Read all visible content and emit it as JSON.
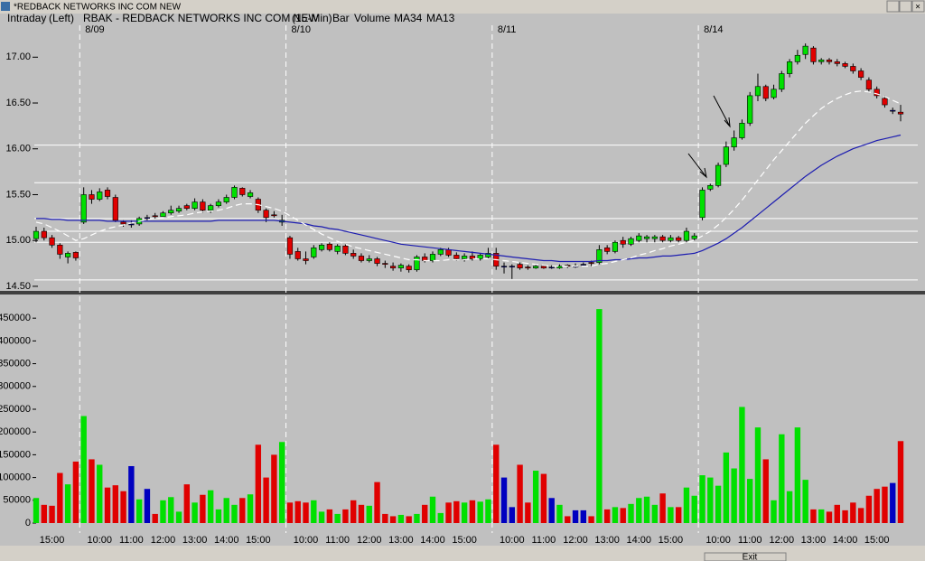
{
  "window_title": "*REDBACK NETWORKS INC COM NEW",
  "button": "Exit",
  "header": {
    "view": "Intraday",
    "side": "(Left)",
    "symbol": "RBAK - REDBACK NETWORKS INC COM NEW",
    "interval": "(15-Min)",
    "style": "Bar"
  },
  "chart_data": [
    {
      "type": "candlestick",
      "categories": [
        null,
        null,
        null,
        null,
        null,
        null,
        "8/09",
        null,
        null,
        null,
        null,
        null,
        null,
        null,
        null,
        null,
        null,
        null,
        null,
        null,
        null,
        null,
        null,
        null,
        null,
        null,
        null,
        null,
        null,
        null,
        null,
        null,
        "8/10",
        null,
        null,
        null,
        null,
        null,
        null,
        null,
        null,
        null,
        null,
        null,
        null,
        null,
        null,
        null,
        null,
        null,
        null,
        null,
        null,
        null,
        null,
        null,
        null,
        null,
        "8/11",
        null,
        null,
        null,
        null,
        null,
        null,
        null,
        null,
        null,
        null,
        null,
        null,
        null,
        null,
        null,
        null,
        null,
        null,
        null,
        null,
        null,
        null,
        null,
        null,
        null,
        "8/14",
        null,
        null,
        null,
        null,
        null,
        null,
        null,
        null,
        null,
        null,
        null,
        null,
        null,
        null,
        null,
        null,
        null,
        null,
        null,
        null,
        null,
        null,
        null,
        null,
        null
      ],
      "open": [
        15.02,
        15.1,
        15.03,
        14.95,
        14.82,
        14.87,
        15.2,
        15.5,
        15.45,
        15.55,
        15.47,
        15.2,
        15.18,
        15.18,
        15.25,
        15.27,
        15.26,
        15.3,
        15.32,
        15.38,
        15.35,
        15.42,
        15.33,
        15.38,
        15.42,
        15.47,
        15.57,
        15.48,
        15.45,
        15.33,
        15.28,
        15.2,
        15.03,
        14.88,
        14.8,
        14.82,
        14.9,
        14.96,
        14.88,
        14.94,
        14.86,
        14.83,
        14.78,
        14.8,
        14.75,
        14.72,
        14.7,
        14.72,
        14.68,
        14.82,
        14.78,
        14.85,
        14.9,
        14.84,
        14.8,
        14.83,
        14.8,
        14.82,
        14.86,
        14.72,
        14.72,
        14.74,
        14.71,
        14.7,
        14.72,
        14.71,
        14.7,
        14.73,
        14.72,
        14.74,
        14.76,
        14.76,
        14.92,
        14.88,
        15.0,
        14.96,
        15.0,
        15.02,
        15.02,
        15.04,
        15.0,
        15.03,
        15.0,
        15.02,
        15.25,
        15.56,
        15.6,
        15.83,
        16.02,
        16.12,
        16.28,
        16.58,
        16.68,
        16.56,
        16.65,
        16.82,
        16.95,
        17.03,
        17.1,
        16.95,
        16.97,
        16.95,
        16.93,
        16.9,
        16.85,
        16.75,
        16.65,
        16.55,
        16.42,
        16.4
      ],
      "high": [
        15.15,
        15.14,
        15.06,
        14.97,
        14.88,
        14.88,
        15.58,
        15.55,
        15.57,
        15.58,
        15.5,
        15.22,
        15.22,
        15.26,
        15.28,
        15.3,
        15.32,
        15.38,
        15.38,
        15.4,
        15.46,
        15.45,
        15.4,
        15.45,
        15.5,
        15.6,
        15.58,
        15.55,
        15.47,
        15.35,
        15.32,
        15.28,
        15.05,
        14.92,
        14.88,
        14.95,
        14.97,
        14.98,
        14.96,
        14.96,
        14.9,
        14.86,
        14.84,
        14.82,
        14.78,
        14.76,
        14.75,
        14.74,
        14.84,
        14.86,
        14.88,
        14.92,
        14.92,
        14.87,
        14.86,
        14.88,
        14.86,
        14.92,
        14.92,
        14.76,
        14.74,
        14.76,
        14.73,
        14.74,
        14.73,
        14.73,
        14.74,
        14.74,
        14.75,
        14.76,
        14.78,
        14.95,
        14.95,
        15.0,
        15.04,
        15.04,
        15.08,
        15.06,
        15.06,
        15.06,
        15.06,
        15.05,
        15.14,
        15.08,
        15.58,
        15.62,
        15.85,
        16.08,
        16.2,
        16.32,
        16.62,
        16.82,
        16.7,
        16.7,
        16.85,
        16.98,
        17.08,
        17.15,
        17.12,
        16.99,
        16.99,
        16.98,
        16.95,
        16.93,
        16.88,
        16.78,
        16.68,
        16.58,
        16.45,
        16.48
      ],
      "low": [
        14.98,
        15.0,
        14.92,
        14.8,
        14.75,
        14.78,
        15.18,
        15.4,
        15.43,
        15.45,
        15.2,
        15.15,
        15.14,
        15.16,
        15.22,
        15.24,
        15.25,
        15.28,
        15.3,
        15.33,
        15.33,
        15.3,
        15.3,
        15.36,
        15.4,
        15.45,
        15.48,
        15.46,
        15.3,
        15.2,
        15.25,
        15.16,
        14.8,
        14.78,
        14.74,
        14.8,
        14.88,
        14.88,
        14.85,
        14.84,
        14.8,
        14.76,
        14.76,
        14.72,
        14.7,
        14.67,
        14.66,
        14.65,
        14.66,
        14.76,
        14.76,
        14.83,
        14.82,
        14.78,
        14.77,
        14.78,
        14.78,
        14.8,
        14.68,
        14.64,
        14.58,
        14.68,
        14.68,
        14.69,
        14.69,
        14.69,
        14.69,
        14.7,
        14.7,
        14.72,
        14.72,
        14.74,
        14.85,
        14.86,
        14.92,
        14.94,
        14.98,
        14.98,
        14.98,
        14.98,
        14.98,
        14.98,
        14.98,
        15.0,
        15.22,
        15.54,
        15.58,
        15.8,
        15.98,
        16.1,
        16.25,
        16.52,
        16.52,
        16.54,
        16.62,
        16.78,
        16.92,
        16.98,
        16.92,
        16.92,
        16.92,
        16.9,
        16.88,
        16.82,
        16.75,
        16.62,
        16.55,
        16.45,
        16.38,
        16.3
      ],
      "close": [
        15.1,
        15.03,
        14.95,
        14.85,
        14.86,
        14.81,
        15.5,
        15.45,
        15.53,
        15.48,
        15.22,
        15.18,
        15.18,
        15.24,
        15.25,
        15.26,
        15.3,
        15.33,
        15.35,
        15.35,
        15.42,
        15.33,
        15.38,
        15.42,
        15.47,
        15.58,
        15.5,
        15.52,
        15.33,
        15.25,
        15.27,
        15.22,
        14.85,
        14.8,
        14.78,
        14.92,
        14.95,
        14.9,
        14.94,
        14.86,
        14.83,
        14.78,
        14.8,
        14.75,
        14.74,
        14.7,
        14.73,
        14.68,
        14.82,
        14.78,
        14.85,
        14.9,
        14.84,
        14.8,
        14.83,
        14.8,
        14.84,
        14.86,
        14.72,
        14.72,
        14.72,
        14.7,
        14.7,
        14.72,
        14.7,
        14.71,
        14.72,
        14.72,
        14.72,
        14.74,
        14.75,
        14.9,
        14.88,
        14.98,
        14.96,
        15.02,
        15.05,
        15.04,
        15.04,
        15.0,
        15.03,
        15.0,
        15.1,
        15.05,
        15.55,
        15.6,
        15.82,
        16.02,
        16.12,
        16.28,
        16.58,
        16.68,
        16.55,
        16.65,
        16.82,
        16.95,
        17.02,
        17.12,
        16.95,
        16.97,
        16.95,
        16.93,
        16.9,
        16.85,
        16.78,
        16.65,
        16.58,
        16.48,
        16.42,
        16.38
      ],
      "up_color": "#00e000",
      "down_color": "#e00000",
      "flat_color": "#0000c0",
      "series": [
        {
          "name": "MA34",
          "color": "#1c1cb0",
          "values": [
            15.24,
            15.24,
            15.23,
            15.23,
            15.22,
            15.22,
            15.22,
            15.22,
            15.22,
            15.21,
            15.21,
            15.21,
            15.21,
            15.21,
            15.21,
            15.21,
            15.21,
            15.21,
            15.21,
            15.21,
            15.21,
            15.21,
            15.21,
            15.22,
            15.22,
            15.22,
            15.22,
            15.22,
            15.22,
            15.22,
            15.22,
            15.21,
            15.2,
            15.19,
            15.18,
            15.16,
            15.15,
            15.13,
            15.12,
            15.1,
            15.08,
            15.06,
            15.04,
            15.02,
            15.0,
            14.98,
            14.96,
            14.95,
            14.94,
            14.93,
            14.92,
            14.91,
            14.9,
            14.89,
            14.88,
            14.87,
            14.86,
            14.85,
            14.84,
            14.83,
            14.82,
            14.81,
            14.8,
            14.79,
            14.78,
            14.78,
            14.77,
            14.77,
            14.77,
            14.77,
            14.77,
            14.78,
            14.78,
            14.79,
            14.79,
            14.8,
            14.81,
            14.81,
            14.82,
            14.83,
            14.83,
            14.84,
            14.85,
            14.86,
            14.89,
            14.93,
            14.97,
            15.02,
            15.08,
            15.14,
            15.21,
            15.28,
            15.35,
            15.42,
            15.49,
            15.56,
            15.63,
            15.7,
            15.76,
            15.82,
            15.87,
            15.92,
            15.96,
            16.0,
            16.03,
            16.06,
            16.09,
            16.11,
            16.13,
            16.15
          ]
        },
        {
          "name": "MA13",
          "color": "#ffffff",
          "values": [
            15.2,
            15.18,
            15.14,
            15.1,
            15.05,
            15.0,
            15.02,
            15.06,
            15.1,
            15.13,
            15.15,
            15.17,
            15.19,
            15.21,
            15.23,
            15.24,
            15.25,
            15.26,
            15.27,
            15.28,
            15.3,
            15.31,
            15.32,
            15.33,
            15.35,
            15.38,
            15.4,
            15.4,
            15.39,
            15.37,
            15.35,
            15.32,
            15.27,
            15.22,
            15.17,
            15.12,
            15.07,
            15.03,
            14.99,
            14.96,
            14.93,
            14.91,
            14.89,
            14.87,
            14.85,
            14.83,
            14.81,
            14.79,
            14.79,
            14.78,
            14.78,
            14.78,
            14.79,
            14.79,
            14.79,
            14.8,
            14.8,
            14.8,
            14.79,
            14.78,
            14.77,
            14.76,
            14.75,
            14.74,
            14.73,
            14.72,
            14.72,
            14.72,
            14.72,
            14.72,
            14.72,
            14.74,
            14.75,
            14.77,
            14.79,
            14.81,
            14.84,
            14.86,
            14.89,
            14.91,
            14.94,
            14.96,
            14.98,
            15.0,
            15.05,
            15.1,
            15.17,
            15.25,
            15.34,
            15.44,
            15.55,
            15.66,
            15.77,
            15.88,
            15.98,
            16.08,
            16.18,
            16.28,
            16.36,
            16.44,
            16.5,
            16.55,
            16.59,
            16.62,
            16.63,
            16.62,
            16.6,
            16.57,
            16.53,
            16.49
          ]
        }
      ],
      "ylim": [
        14.45,
        17.2
      ],
      "yticks": [
        {
          "value": 14.5,
          "label": "14.50"
        },
        {
          "value": 15,
          "label": "15.00"
        },
        {
          "value": 15.5,
          "label": "15.50"
        },
        {
          "value": 16,
          "label": "16.00"
        },
        {
          "value": 16.5,
          "label": "16.50"
        },
        {
          "value": 17,
          "label": "17.00"
        }
      ],
      "levels": [
        16.04,
        15.63,
        15.24,
        15.1,
        14.98,
        14.57
      ]
    },
    {
      "type": "bar",
      "categories": [
        null,
        null,
        "15:00",
        null,
        null,
        null,
        null,
        null,
        "10:00",
        null,
        null,
        null,
        "11:00",
        null,
        null,
        null,
        "12:00",
        null,
        null,
        null,
        "13:00",
        null,
        null,
        null,
        "14:00",
        null,
        null,
        null,
        "15:00",
        null,
        null,
        null,
        null,
        null,
        "10:00",
        null,
        null,
        null,
        "11:00",
        null,
        null,
        null,
        "12:00",
        null,
        null,
        null,
        "13:00",
        null,
        null,
        null,
        "14:00",
        null,
        null,
        null,
        "15:00",
        null,
        null,
        null,
        null,
        null,
        "10:00",
        null,
        null,
        null,
        "11:00",
        null,
        null,
        null,
        "12:00",
        null,
        null,
        null,
        "13:00",
        null,
        null,
        null,
        "14:00",
        null,
        null,
        null,
        "15:00",
        null,
        null,
        null,
        null,
        null,
        "10:00",
        null,
        null,
        null,
        "11:00",
        null,
        null,
        null,
        "12:00",
        null,
        null,
        null,
        "13:00",
        null,
        null,
        null,
        "14:00",
        null,
        null,
        null,
        "15:00",
        null,
        null,
        null
      ],
      "series": [
        {
          "name": "Volume",
          "color": "#1a1aff",
          "values": [
            55000,
            40000,
            38000,
            110000,
            85000,
            135000,
            235000,
            140000,
            128000,
            78000,
            83000,
            70000,
            125000,
            52000,
            75000,
            20000,
            50000,
            57000,
            25000,
            85000,
            45000,
            62000,
            72000,
            30000,
            55000,
            40000,
            55000,
            63000,
            172000,
            100000,
            150000,
            178000,
            45000,
            48000,
            45000,
            50000,
            25000,
            30000,
            20000,
            30000,
            50000,
            40000,
            38000,
            90000,
            20000,
            15000,
            18000,
            15000,
            20000,
            40000,
            58000,
            22000,
            45000,
            48000,
            45000,
            50000,
            47000,
            52000,
            172000,
            100000,
            35000,
            128000,
            45000,
            115000,
            108000,
            55000,
            40000,
            15000,
            28000,
            28000,
            15000,
            470000,
            30000,
            35000,
            33000,
            42000,
            55000,
            58000,
            40000,
            65000,
            35000,
            35000,
            78000,
            60000,
            105000,
            100000,
            82000,
            155000,
            120000,
            255000,
            97000,
            210000,
            140000,
            50000,
            195000,
            70000,
            210000,
            95000,
            30000,
            30000,
            25000,
            40000,
            28000,
            45000,
            33000,
            60000,
            75000,
            80000,
            88000,
            180000
          ]
        }
      ],
      "ylim": [
        0,
        494000
      ],
      "yticks": [
        0,
        50000,
        100000,
        150000,
        200000,
        250000,
        300000,
        350000,
        400000,
        450000
      ]
    }
  ]
}
